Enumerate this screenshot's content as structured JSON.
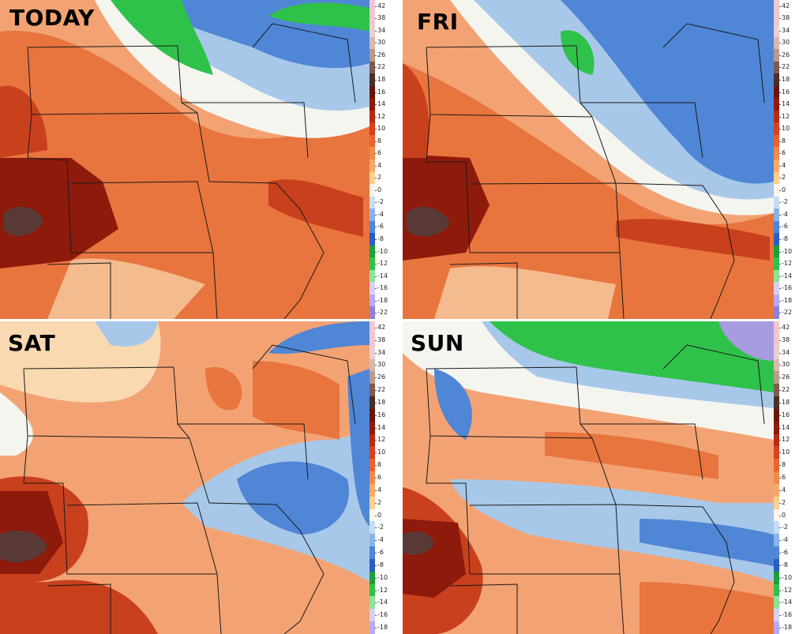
{
  "panels": [
    {
      "id": "today",
      "title": "TODAY",
      "colorbar": [
        "42",
        "38",
        "34",
        "30",
        "26",
        "22",
        "18",
        "16",
        "14",
        "12",
        "10",
        "8",
        "6",
        "4",
        "2",
        "0",
        "-2",
        "-4",
        "-6",
        "-8",
        "-10",
        "-12",
        "-14",
        "-16",
        "-18",
        "-22"
      ]
    },
    {
      "id": "fri",
      "title": "FRI",
      "colorbar": [
        "42",
        "38",
        "34",
        "30",
        "26",
        "22",
        "18",
        "16",
        "14",
        "12",
        "10",
        "8",
        "6",
        "4",
        "2",
        "0",
        "-2",
        "-4",
        "-6",
        "-8",
        "-10",
        "-12",
        "-14",
        "-16",
        "-18",
        "-22"
      ]
    },
    {
      "id": "sat",
      "title": "SAT",
      "colorbar": [
        "42",
        "38",
        "34",
        "30",
        "26",
        "22",
        "18",
        "16",
        "14",
        "12",
        "10",
        "8",
        "6",
        "4",
        "2",
        "0",
        "-2",
        "-4",
        "-6",
        "-8",
        "-10",
        "-12",
        "-14",
        "-16",
        "-18"
      ]
    },
    {
      "id": "sun",
      "title": "SUN",
      "colorbar": [
        "42",
        "38",
        "34",
        "30",
        "26",
        "22",
        "18",
        "16",
        "14",
        "12",
        "10",
        "8",
        "6",
        "4",
        "2",
        "0",
        "-2",
        "-4",
        "-6",
        "-8",
        "-10",
        "-12",
        "-14",
        "-16",
        "-18"
      ]
    }
  ],
  "colors": {
    "very_warm": "#5a3a36",
    "dark_red": "#8e1a0c",
    "red": "#c9401d",
    "orange": "#e8753e",
    "light_orange": "#f3a373",
    "tan": "#f8d9b0",
    "white": "#f5f5f0",
    "light_blue": "#a8c8ea",
    "blue": "#4f86d6",
    "dark_blue": "#2a5fc0",
    "green": "#2fc24a",
    "purple": "#a89be0",
    "border": "#1a1a1a"
  }
}
